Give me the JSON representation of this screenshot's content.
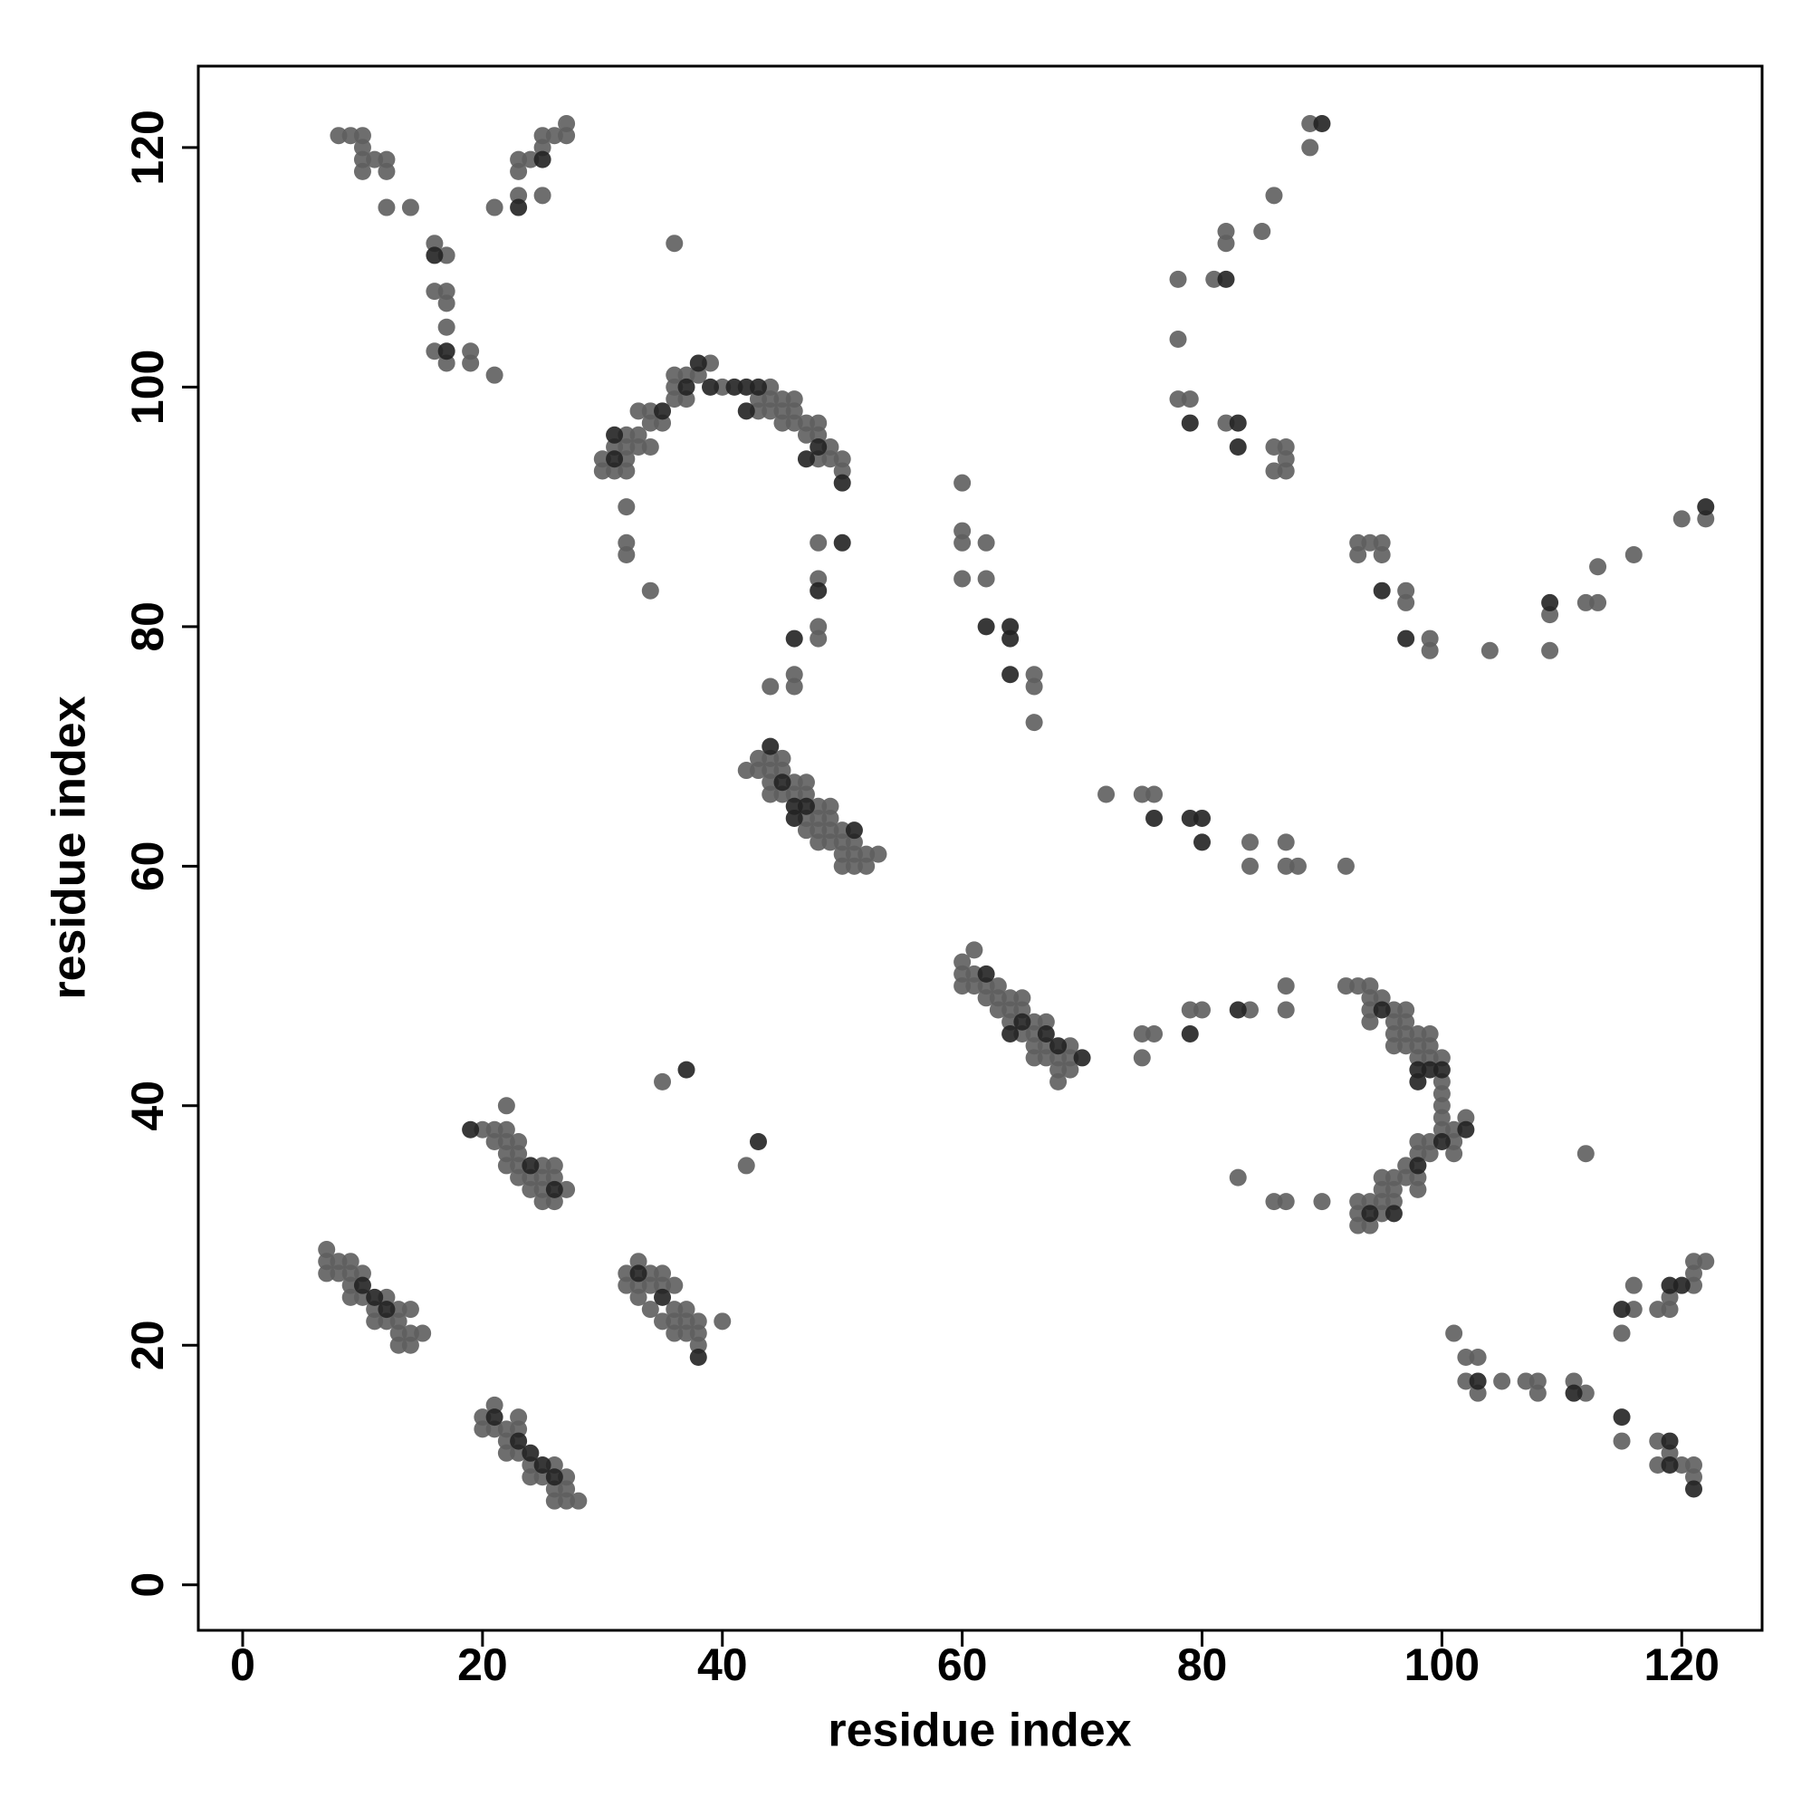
{
  "chart_data": {
    "type": "scatter",
    "xlabel": "residue index",
    "ylabel": "residue index",
    "xlim": [
      -3.7,
      126.7
    ],
    "ylim": [
      -3.8,
      126.8
    ],
    "xticks": [
      0,
      20,
      40,
      60,
      80,
      100,
      120
    ],
    "yticks": [
      0,
      20,
      40,
      60,
      80,
      100,
      120
    ],
    "series": [
      {
        "color": "#5e5e5e",
        "x": [
          8,
          9,
          10,
          10,
          10,
          11,
          12,
          10,
          12,
          12,
          14,
          16,
          17,
          16,
          17,
          17,
          17,
          16,
          17,
          19,
          19,
          21,
          21,
          23,
          25,
          23,
          23,
          24,
          25,
          25,
          26,
          27,
          27,
          36,
          30,
          30,
          31,
          31,
          32,
          32,
          32,
          32,
          33,
          33,
          34,
          33,
          34,
          34,
          35,
          36,
          36,
          36,
          37,
          37,
          38,
          39,
          40,
          43,
          43,
          44,
          44,
          44,
          45,
          45,
          45,
          46,
          46,
          46,
          47,
          47,
          48,
          48,
          48,
          49,
          49,
          50,
          50,
          32,
          32,
          32,
          34,
          48,
          48,
          48,
          48,
          46,
          46,
          44,
          42,
          43,
          43,
          44,
          44,
          44,
          44,
          45,
          45,
          45,
          46,
          46,
          47,
          47,
          47,
          47,
          48,
          48,
          48,
          48,
          49,
          49,
          49,
          49,
          50,
          50,
          50,
          50,
          51,
          51,
          51,
          52,
          52,
          53,
          60,
          60,
          60,
          61,
          61,
          61,
          62,
          62,
          63,
          63,
          63,
          64,
          64,
          64,
          65,
          65,
          65,
          66,
          66,
          66,
          66,
          67,
          67,
          67,
          68,
          68,
          68,
          69,
          69,
          69,
          60,
          60,
          60,
          60,
          62,
          62,
          66,
          66,
          66,
          72,
          75,
          76,
          84,
          84,
          87,
          87,
          88,
          92,
          75,
          76,
          75,
          79,
          80,
          84,
          87,
          87,
          83,
          86,
          87,
          90,
          92,
          93,
          94,
          94,
          94,
          94,
          95,
          96,
          96,
          96,
          96,
          97,
          97,
          97,
          97,
          98,
          98,
          98,
          99,
          99,
          99,
          100,
          100,
          100,
          100,
          100,
          100,
          101,
          101,
          101,
          102,
          99,
          99,
          98,
          98,
          98,
          98,
          97,
          97,
          96,
          96,
          96,
          95,
          95,
          95,
          95,
          94,
          94,
          93,
          93,
          93,
          89,
          89,
          86,
          82,
          82,
          85,
          78,
          81,
          78,
          78,
          79,
          82,
          86,
          87,
          87,
          86,
          87,
          93,
          93,
          94,
          95,
          95,
          97,
          97,
          99,
          99,
          104,
          109,
          109,
          112,
          113,
          113,
          116,
          120,
          122,
          7,
          7,
          7,
          8,
          8,
          9,
          9,
          9,
          9,
          10,
          10,
          11,
          11,
          12,
          12,
          13,
          13,
          13,
          13,
          14,
          14,
          14,
          15,
          20,
          21,
          21,
          22,
          22,
          22,
          22,
          22,
          23,
          23,
          23,
          23,
          24,
          24,
          25,
          25,
          25,
          25,
          26,
          26,
          26,
          27,
          32,
          32,
          33,
          33,
          33,
          34,
          34,
          34,
          35,
          35,
          35,
          36,
          36,
          36,
          36,
          37,
          37,
          37,
          38,
          38,
          38,
          40,
          35,
          42,
          112,
          20,
          20,
          21,
          21,
          22,
          22,
          22,
          23,
          23,
          23,
          24,
          24,
          25,
          26,
          26,
          26,
          27,
          27,
          27,
          28,
          101,
          102,
          103,
          102,
          103,
          105,
          107,
          108,
          108,
          111,
          112,
          116,
          116,
          115,
          118,
          119,
          119,
          121,
          121,
          121,
          122,
          115,
          118,
          118,
          119,
          120,
          121,
          121
        ],
        "y": [
          121,
          121,
          121,
          120,
          119,
          119,
          119,
          118,
          118,
          115,
          115,
          112,
          111,
          108,
          108,
          107,
          105,
          103,
          102,
          103,
          102,
          101,
          115,
          116,
          116,
          118,
          119,
          119,
          120,
          121,
          121,
          121,
          122,
          112,
          94,
          93,
          93,
          95,
          93,
          94,
          95,
          96,
          96,
          95,
          95,
          98,
          98,
          97,
          97,
          99,
          100,
          101,
          101,
          99,
          101,
          102,
          100,
          99,
          98,
          100,
          99,
          98,
          99,
          98,
          97,
          99,
          98,
          97,
          97,
          96,
          97,
          96,
          94,
          95,
          94,
          94,
          93,
          90,
          87,
          86,
          83,
          87,
          84,
          80,
          79,
          76,
          75,
          75,
          68,
          69,
          68,
          69,
          68,
          67,
          66,
          69,
          68,
          66,
          67,
          66,
          67,
          66,
          64,
          63,
          65,
          64,
          63,
          62,
          65,
          64,
          63,
          62,
          63,
          62,
          61,
          60,
          62,
          61,
          60,
          61,
          60,
          61,
          52,
          51,
          50,
          53,
          51,
          50,
          50,
          49,
          50,
          49,
          48,
          49,
          48,
          47,
          49,
          48,
          46,
          47,
          46,
          45,
          44,
          47,
          45,
          44,
          44,
          43,
          42,
          45,
          44,
          43,
          92,
          88,
          87,
          84,
          87,
          84,
          76,
          75,
          72,
          66,
          66,
          66,
          62,
          60,
          62,
          60,
          60,
          60,
          46,
          46,
          44,
          48,
          48,
          48,
          50,
          48,
          34,
          32,
          32,
          32,
          50,
          50,
          50,
          49,
          48,
          47,
          49,
          48,
          47,
          46,
          45,
          48,
          47,
          46,
          45,
          46,
          45,
          44,
          46,
          45,
          44,
          44,
          42,
          41,
          40,
          39,
          38,
          38,
          37,
          36,
          39,
          37,
          36,
          37,
          36,
          34,
          33,
          35,
          34,
          34,
          33,
          32,
          34,
          33,
          32,
          31,
          32,
          30,
          32,
          31,
          30,
          122,
          120,
          116,
          113,
          112,
          113,
          109,
          109,
          104,
          99,
          99,
          97,
          95,
          95,
          94,
          93,
          93,
          87,
          86,
          87,
          87,
          86,
          83,
          82,
          79,
          78,
          78,
          81,
          78,
          82,
          82,
          85,
          86,
          89,
          89,
          28,
          27,
          26,
          27,
          26,
          27,
          26,
          25,
          24,
          26,
          24,
          23,
          22,
          24,
          22,
          23,
          22,
          21,
          20,
          23,
          21,
          20,
          21,
          38,
          38,
          37,
          40,
          38,
          37,
          36,
          35,
          37,
          36,
          35,
          34,
          34,
          33,
          35,
          34,
          33,
          32,
          35,
          34,
          32,
          33,
          26,
          25,
          27,
          25,
          24,
          26,
          25,
          23,
          26,
          25,
          22,
          25,
          23,
          22,
          21,
          23,
          22,
          21,
          22,
          21,
          20,
          22,
          42,
          35,
          36,
          14,
          13,
          15,
          13,
          13,
          12,
          11,
          14,
          13,
          11,
          10,
          9,
          9,
          10,
          8,
          7,
          9,
          8,
          7,
          7,
          21,
          19,
          19,
          17,
          16,
          17,
          17,
          17,
          16,
          17,
          16,
          23,
          25,
          21,
          23,
          24,
          23,
          25,
          26,
          27,
          27,
          12,
          12,
          10,
          11,
          10,
          10,
          9
        ]
      },
      {
        "color": "#222222",
        "x": [
          16,
          17,
          23,
          25,
          31,
          31,
          35,
          37,
          38,
          39,
          41,
          42,
          42,
          43,
          47,
          48,
          50,
          50,
          48,
          46,
          44,
          45,
          46,
          46,
          47,
          51,
          62,
          64,
          65,
          67,
          68,
          70,
          62,
          64,
          64,
          64,
          76,
          79,
          80,
          80,
          79,
          83,
          95,
          98,
          98,
          99,
          100,
          100,
          102,
          98,
          96,
          94,
          90,
          82,
          79,
          83,
          83,
          95,
          97,
          109,
          122,
          10,
          11,
          12,
          19,
          24,
          26,
          33,
          35,
          38,
          37,
          43,
          21,
          23,
          24,
          25,
          26,
          103,
          111,
          115,
          119,
          120,
          115,
          119,
          119,
          121
        ],
        "y": [
          111,
          103,
          115,
          119,
          94,
          96,
          98,
          100,
          102,
          100,
          100,
          100,
          98,
          100,
          94,
          95,
          92,
          87,
          83,
          79,
          70,
          67,
          65,
          64,
          65,
          63,
          51,
          46,
          47,
          46,
          45,
          44,
          80,
          80,
          79,
          76,
          64,
          64,
          64,
          62,
          46,
          48,
          48,
          43,
          42,
          43,
          43,
          37,
          38,
          35,
          31,
          31,
          122,
          109,
          97,
          97,
          95,
          83,
          79,
          82,
          90,
          25,
          24,
          23,
          38,
          35,
          33,
          26,
          24,
          19,
          43,
          37,
          14,
          12,
          11,
          10,
          9,
          17,
          16,
          23,
          25,
          25,
          14,
          12,
          10,
          8
        ]
      }
    ]
  }
}
